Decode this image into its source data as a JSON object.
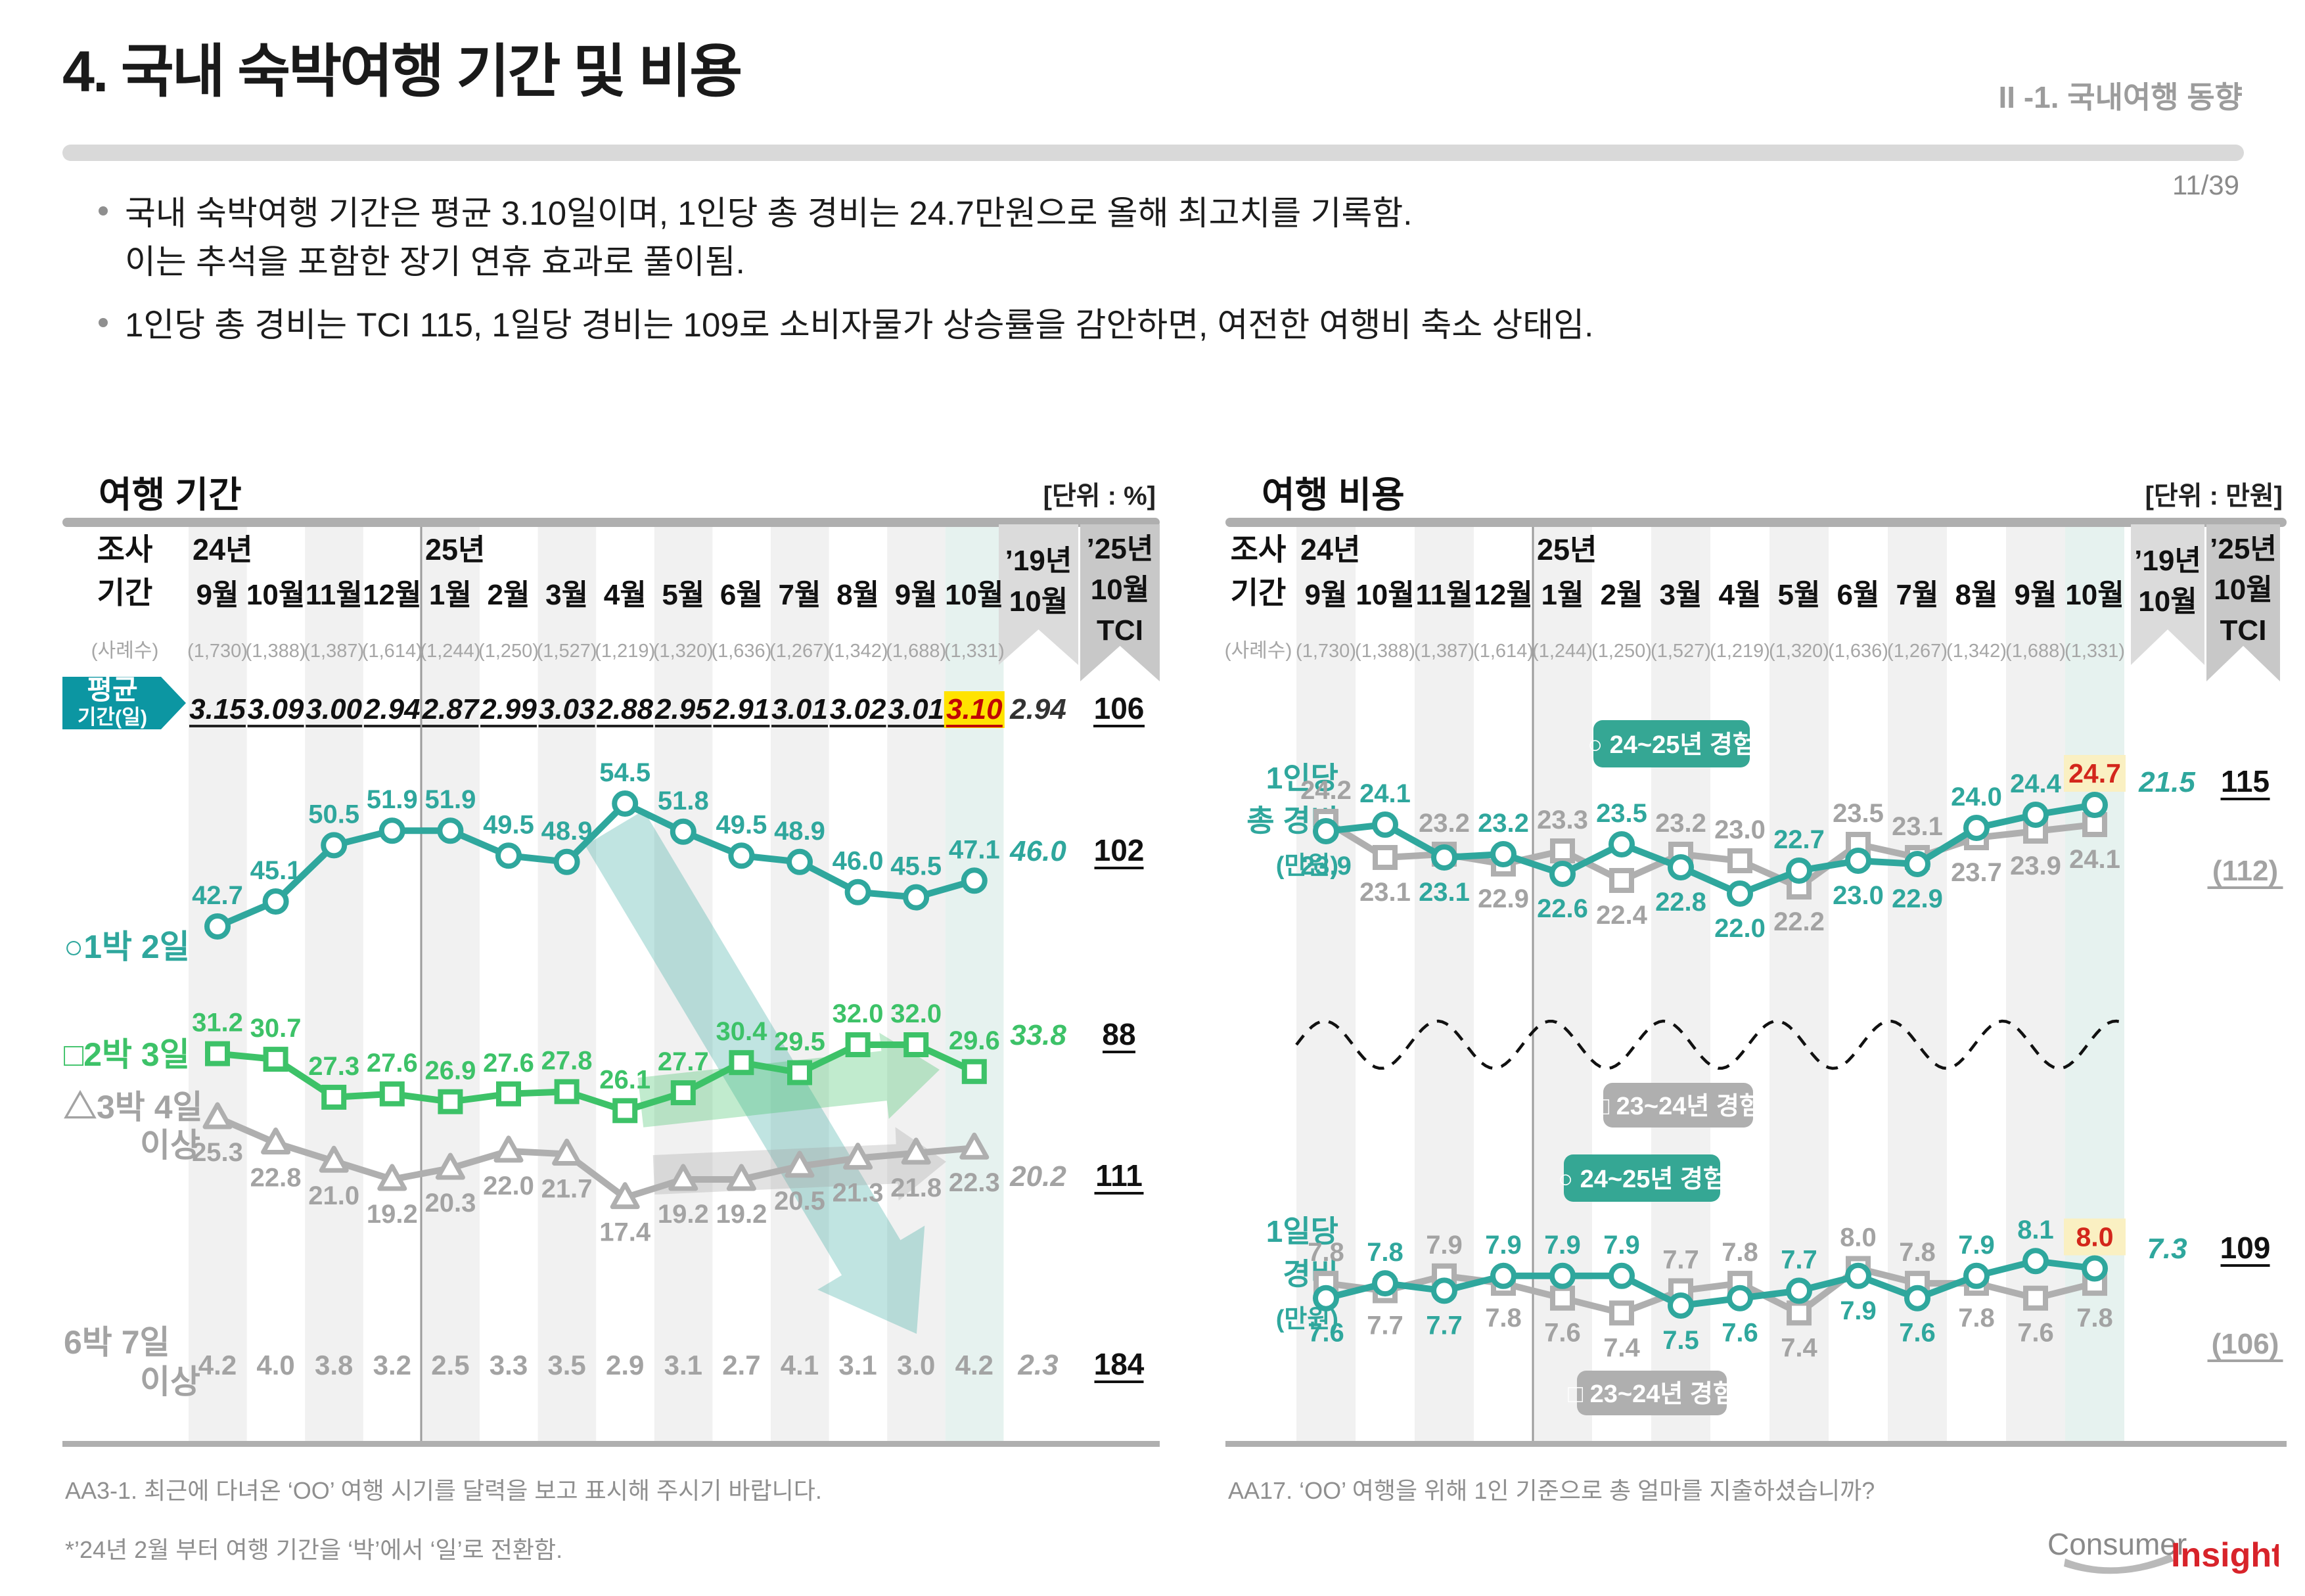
{
  "slide": {
    "title": "4. 국내 숙박여행 기간 및 비용",
    "section": "II -1. 국내여행 동향",
    "page": "11/39",
    "bullets": [
      {
        "lines": [
          "국내 숙박여행 기간은 평균 3.10일이며, 1인당 총 경비는 24.7만원으로 올해 최고치를 기록함.",
          "이는 추석을 포함한 장기 연휴 효과로 풀이됨."
        ]
      },
      {
        "lines": [
          "1인당 총 경비는 TCI 115, 1일당 경비는 109로 소비자물가 상승률을 감안하면, 여전한 여행비 축소 상태임."
        ]
      }
    ],
    "logo": {
      "part1": "Consumer",
      "part2": "Insight"
    }
  },
  "colors": {
    "teal": "#2FA79D",
    "teal_badge": "#0C96A2",
    "teal_legend": "#35A794",
    "green": "#3DC268",
    "gray_line": "#AFAFAF",
    "gray_label": "#A3A3A3",
    "red": "#D3261B",
    "yellow": "#FFE300",
    "pale_yellow": "#FAF0C2",
    "stripe": "#F1F1F1",
    "stripe_current": "#E6F2EF",
    "pennant_light": "#DBDBDB",
    "pennant_dark": "#C8C8C8",
    "bar": "#AFAFAF",
    "divider": "#9C9C9C",
    "count": "#A6A6A6"
  },
  "columns": {
    "row_label_lines": [
      "조사",
      "기간"
    ],
    "case_label": "(사례수)",
    "year_left": "24년",
    "year_right": "25년",
    "months": [
      "9월",
      "10월",
      "11월",
      "12월",
      "1월",
      "2월",
      "3월",
      "4월",
      "5월",
      "6월",
      "7월",
      "8월",
      "9월",
      "10월"
    ],
    "case_counts": [
      "(1,730)",
      "(1,388)",
      "(1,387)",
      "(1,614)",
      "(1,244)",
      "(1,250)",
      "(1,527)",
      "(1,219)",
      "(1,320)",
      "(1,636)",
      "(1,267)",
      "(1,342)",
      "(1,688)",
      "(1,331)"
    ],
    "ref_col_lines": [
      "’19년",
      "10월"
    ],
    "tci_col_lines": [
      "’25년",
      "10월",
      "TCI"
    ]
  },
  "chart_data": [
    {
      "type": "line",
      "panel": "여행 기간",
      "unit": "[단위 : %]",
      "categories": [
        "9월",
        "10월",
        "11월",
        "12월",
        "1월",
        "2월",
        "3월",
        "4월",
        "5월",
        "6월",
        "7월",
        "8월",
        "9월",
        "10월"
      ],
      "avg_row": {
        "label_lines": [
          "평균",
          "기간(일)"
        ],
        "values": [
          "3.15",
          "3.09",
          "3.00",
          "2.94",
          "2.87",
          "2.99",
          "3.03",
          "2.88",
          "2.95",
          "2.91",
          "3.01",
          "3.02",
          "3.01",
          "3.10"
        ],
        "highlight_index": 13,
        "ref": "2.94",
        "tci": "106"
      },
      "series": [
        {
          "name": "1박 2일",
          "legend_lines": [
            "○1박 2일"
          ],
          "marker": "circle",
          "color_key": "teal",
          "values": [
            42.7,
            45.1,
            50.5,
            51.9,
            51.9,
            49.5,
            48.9,
            54.5,
            51.8,
            49.5,
            48.9,
            46.0,
            45.5,
            47.1
          ],
          "label_side": "above",
          "ref": "46.0",
          "tci": "102"
        },
        {
          "name": "2박 3일",
          "legend_lines": [
            "□2박 3일"
          ],
          "marker": "square",
          "color_key": "green",
          "values": [
            31.2,
            30.7,
            27.3,
            27.6,
            26.9,
            27.6,
            27.8,
            26.1,
            27.7,
            30.4,
            29.5,
            32.0,
            32.0,
            29.6
          ],
          "label_side": "above",
          "ref": "33.8",
          "tci": "88"
        },
        {
          "name": "3박 4일 이상",
          "legend_lines": [
            "△3박 4일",
            "이상"
          ],
          "marker": "triangle",
          "color_key": "gray",
          "values": [
            25.3,
            22.8,
            21.0,
            19.2,
            20.3,
            22.0,
            21.7,
            17.4,
            19.2,
            19.2,
            20.5,
            21.3,
            21.8,
            22.3
          ],
          "label_side": "below",
          "ref": "20.2",
          "tci": "111"
        },
        {
          "name": "6박 7일 이상",
          "legend_lines": [
            "6박 7일",
            "이상"
          ],
          "marker": "none",
          "color_key": "gray",
          "values_text": [
            "4.2",
            "4.0",
            "3.8",
            "3.2",
            "2.5",
            "3.3",
            "3.5",
            "2.9",
            "3.1",
            "2.7",
            "4.1",
            "3.1",
            "3.0",
            "4.2"
          ],
          "ref": "2.3",
          "tci": "184"
        }
      ],
      "annotations": [
        {
          "type": "trend-arrow",
          "series": "1박 2일",
          "direction": "down-right"
        },
        {
          "type": "trend-arrow",
          "series": "2박 3일",
          "direction": "right"
        },
        {
          "type": "trend-arrow",
          "series": "3박 4일 이상",
          "direction": "right"
        }
      ],
      "footnotes": [
        "AA3-1. 최근에 다녀온 ‘OO’ 여행 시기를 달력을 보고 표시해 주시기 바랍니다.",
        "*’24년 2월 부터 여행 기간을 ‘박’에서 ‘일’로 전환함."
      ]
    },
    {
      "type": "line",
      "panel": "여행 비용",
      "unit": "[단위 : 만원]",
      "categories": [
        "9월",
        "10월",
        "11월",
        "12월",
        "1월",
        "2월",
        "3월",
        "4월",
        "5월",
        "6월",
        "7월",
        "8월",
        "9월",
        "10월"
      ],
      "groups": [
        {
          "name": "1인당 총 경비",
          "label_lines": [
            "1인당",
            "총 경비",
            "(만원)"
          ],
          "series": [
            {
              "name": "24~25년 경험",
              "marker": "circle",
              "color_key": "teal",
              "values": [
                23.9,
                24.1,
                23.1,
                23.2,
                22.6,
                23.5,
                22.8,
                22.0,
                22.7,
                23.0,
                22.9,
                24.0,
                24.4,
                24.7
              ],
              "sides": [
                "b",
                "a",
                "b",
                "a",
                "b",
                "a",
                "b",
                "b",
                "a",
                "b",
                "b",
                "a",
                "a",
                "a"
              ],
              "highlight_index": 13,
              "ref": "21.5",
              "tci": "115"
            },
            {
              "name": "23~24년 경험",
              "marker": "square",
              "color_key": "gray",
              "values": [
                24.2,
                23.1,
                23.2,
                22.9,
                23.3,
                22.4,
                23.2,
                23.0,
                22.2,
                23.5,
                23.1,
                23.7,
                23.9,
                24.1
              ],
              "sides": [
                "a",
                "b",
                "a",
                "b",
                "a",
                "b",
                "a",
                "a",
                "b",
                "a",
                "a",
                "b",
                "b",
                "b"
              ],
              "tci": "(112)"
            }
          ],
          "legends": [
            {
              "text": "○ 24~25년 경험",
              "color_key": "teal_legend"
            },
            {
              "text": "□ 23~24년 경험",
              "color_key": "gray_line"
            }
          ]
        },
        {
          "name": "1일당 경비",
          "label_lines": [
            "1일당",
            "경비",
            "(만원)"
          ],
          "series": [
            {
              "name": "24~25년 경험",
              "marker": "circle",
              "color_key": "teal",
              "values": [
                7.6,
                7.8,
                7.7,
                7.9,
                7.9,
                7.9,
                7.5,
                7.6,
                7.7,
                7.9,
                7.6,
                7.9,
                8.1,
                8.0
              ],
              "sides": [
                "b",
                "a",
                "b",
                "a",
                "a",
                "a",
                "b",
                "b",
                "a",
                "b",
                "b",
                "a",
                "a",
                "a"
              ],
              "highlight_index": 13,
              "ref": "7.3",
              "tci": "109"
            },
            {
              "name": "23~24년 경험",
              "marker": "square",
              "color_key": "gray",
              "values": [
                7.8,
                7.7,
                7.9,
                7.8,
                7.6,
                7.4,
                7.7,
                7.8,
                7.4,
                8.0,
                7.8,
                7.8,
                7.6,
                7.8
              ],
              "sides": [
                "a",
                "b",
                "a",
                "b",
                "b",
                "b",
                "a",
                "a",
                "b",
                "a",
                "a",
                "b",
                "b",
                "b"
              ],
              "tci": "(106)"
            }
          ],
          "legends": [
            {
              "text": "○ 24~25년 경험",
              "color_key": "teal_legend"
            },
            {
              "text": "□ 23~24년 경험",
              "color_key": "gray_line"
            }
          ]
        }
      ],
      "wave_divider": true,
      "footnotes": [
        "AA17. ‘OO’ 여행을 위해 1인 기준으로 총 얼마를 지출하셨습니까?"
      ]
    }
  ]
}
